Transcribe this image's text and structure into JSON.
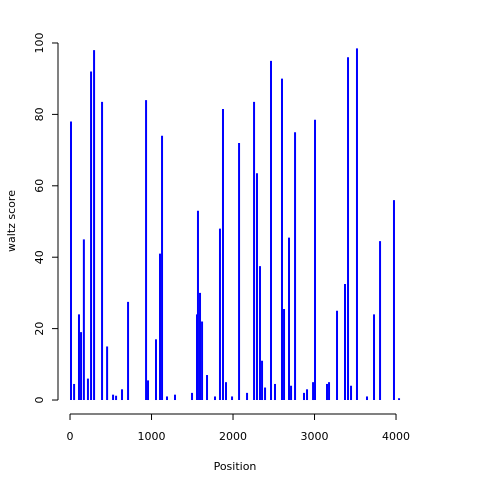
{
  "chart_data": {
    "type": "spike",
    "x_label": "Position",
    "y_label": "waltz score",
    "x": [
      12,
      50,
      110,
      135,
      170,
      220,
      258,
      295,
      393,
      455,
      528,
      565,
      638,
      712,
      933,
      957,
      1055,
      1104,
      1129,
      1190,
      1288,
      1497,
      1558,
      1570,
      1595,
      1620,
      1681,
      1779,
      1840,
      1877,
      1914,
      1988,
      2074,
      2172,
      2258,
      2294,
      2331,
      2356,
      2393,
      2466,
      2515,
      2601,
      2626,
      2687,
      2712,
      2761,
      2871,
      2908,
      2982,
      3006,
      3153,
      3178,
      3276,
      3374,
      3411,
      3448,
      3521,
      3644,
      3730,
      3804,
      3975,
      4037
    ],
    "values": [
      78,
      4.5,
      24,
      19,
      45,
      6,
      92,
      98,
      83.5,
      15,
      1.5,
      1.2,
      3,
      27.5,
      84,
      5.5,
      17,
      41,
      74,
      1,
      1.5,
      2,
      24,
      53,
      30,
      22,
      7,
      1,
      48,
      81.5,
      5,
      1,
      72,
      2,
      83.5,
      63.5,
      37.5,
      11,
      3.5,
      95,
      4.5,
      90,
      25.5,
      45.5,
      4,
      75,
      2,
      3,
      5,
      78.5,
      4.5,
      5,
      25,
      32.5,
      96,
      4,
      98.5,
      1,
      24,
      44.5,
      56,
      0.5
    ],
    "color": "#0000ff",
    "xlim": [
      -80,
      4120
    ],
    "ylim": [
      -4,
      104
    ],
    "xticks": [
      0,
      1000,
      2000,
      3000,
      4000
    ],
    "yticks": [
      0,
      20,
      40,
      60,
      80,
      100
    ]
  }
}
